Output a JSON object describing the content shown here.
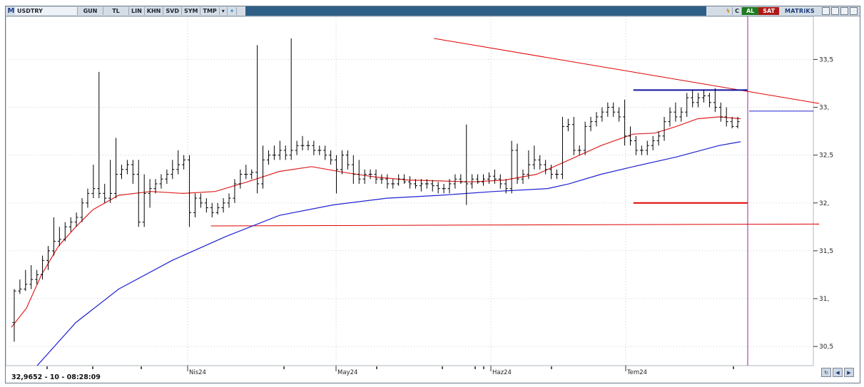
{
  "toolbar": {
    "logo": "M",
    "symbol": "USDTRY",
    "period": "GUN",
    "unit": "TL",
    "modes": [
      "LIN",
      "KHN",
      "SVD",
      "SYM",
      "TMP"
    ],
    "c_label": "C",
    "buy_label": "AL",
    "sell_label": "SAT",
    "brand": "MATRiKS"
  },
  "status": {
    "readout": "32,9652 - 10 - 08:28:09"
  },
  "colors": {
    "price": "#000000",
    "ma_short": "#e02020",
    "ma_long": "#2020d0",
    "resistance": "#1010a0",
    "support": "#e00000",
    "trend": "#e00000",
    "cursor": "#a020a0",
    "grid": "#b8c0c8"
  },
  "chart_data": {
    "type": "bar",
    "symbol": "USDTRY",
    "x_tick_labels": [
      "Nis24",
      "May24",
      "Haz24",
      "Tem24"
    ],
    "y_tick_labels": [
      "30,5",
      "31,",
      "31,5",
      "32,",
      "32,5",
      "33,",
      "33,5"
    ],
    "y_ticks": [
      30.5,
      31.0,
      31.5,
      32.0,
      32.5,
      33.0,
      33.5
    ],
    "ylim": [
      30.3,
      33.95
    ],
    "grid": true,
    "bars": [
      [
        30.75,
        31.1,
        30.55,
        31.08
      ],
      [
        31.08,
        31.2,
        31.05,
        31.1
      ],
      [
        31.1,
        31.3,
        31.08,
        31.15
      ],
      [
        31.15,
        31.35,
        31.1,
        31.2
      ],
      [
        31.2,
        31.3,
        31.15,
        31.25
      ],
      [
        31.25,
        31.45,
        31.2,
        31.4
      ],
      [
        31.4,
        31.55,
        31.3,
        31.5
      ],
      [
        31.5,
        31.85,
        31.45,
        31.6
      ],
      [
        31.6,
        31.75,
        31.55,
        31.62
      ],
      [
        31.62,
        31.8,
        31.6,
        31.75
      ],
      [
        31.75,
        31.85,
        31.7,
        31.8
      ],
      [
        31.8,
        31.9,
        31.75,
        31.85
      ],
      [
        31.85,
        32.05,
        31.8,
        32.0
      ],
      [
        32.0,
        32.15,
        31.95,
        32.1
      ],
      [
        32.1,
        32.4,
        32.05,
        32.15
      ],
      [
        32.15,
        33.37,
        32.05,
        32.1
      ],
      [
        32.1,
        32.2,
        32.0,
        32.05
      ],
      [
        32.05,
        32.45,
        32.0,
        32.1
      ],
      [
        32.1,
        32.68,
        32.05,
        32.3
      ],
      [
        32.3,
        32.4,
        32.25,
        32.35
      ],
      [
        32.35,
        32.45,
        32.3,
        32.4
      ],
      [
        32.4,
        32.45,
        32.2,
        32.3
      ],
      [
        32.3,
        32.45,
        31.75,
        31.8
      ],
      [
        31.8,
        32.3,
        31.75,
        32.1
      ],
      [
        32.1,
        32.25,
        31.95,
        32.15
      ],
      [
        32.15,
        32.25,
        32.1,
        32.2
      ],
      [
        32.2,
        32.3,
        32.15,
        32.25
      ],
      [
        32.25,
        32.35,
        32.2,
        32.3
      ],
      [
        32.3,
        32.45,
        32.25,
        32.35
      ],
      [
        32.35,
        32.55,
        32.3,
        32.4
      ],
      [
        32.4,
        32.5,
        32.35,
        32.45
      ],
      [
        32.45,
        32.5,
        31.75,
        31.9
      ],
      [
        31.9,
        32.1,
        31.85,
        32.05
      ],
      [
        32.05,
        32.1,
        31.95,
        32.0
      ],
      [
        32.0,
        32.05,
        31.9,
        31.95
      ],
      [
        31.95,
        32.0,
        31.85,
        31.9
      ],
      [
        31.9,
        32.0,
        31.88,
        31.95
      ],
      [
        31.95,
        32.05,
        31.9,
        32.0
      ],
      [
        32.0,
        32.1,
        31.95,
        32.05
      ],
      [
        32.05,
        32.25,
        32.0,
        32.2
      ],
      [
        32.2,
        32.35,
        32.15,
        32.3
      ],
      [
        32.3,
        32.4,
        32.25,
        32.3
      ],
      [
        32.3,
        32.35,
        32.25,
        32.32
      ],
      [
        32.32,
        33.65,
        32.1,
        32.2
      ],
      [
        32.2,
        32.6,
        32.15,
        32.45
      ],
      [
        32.45,
        32.55,
        32.4,
        32.5
      ],
      [
        32.5,
        32.6,
        32.45,
        32.5
      ],
      [
        32.5,
        32.65,
        32.45,
        32.55
      ],
      [
        32.55,
        32.6,
        32.45,
        32.5
      ],
      [
        32.5,
        33.72,
        32.45,
        32.55
      ],
      [
        32.55,
        32.65,
        32.5,
        32.6
      ],
      [
        32.6,
        32.7,
        32.55,
        32.6
      ],
      [
        32.6,
        32.65,
        32.55,
        32.6
      ],
      [
        32.6,
        32.65,
        32.5,
        32.55
      ],
      [
        32.55,
        32.6,
        32.5,
        32.55
      ],
      [
        32.55,
        32.6,
        32.45,
        32.5
      ],
      [
        32.5,
        32.55,
        32.4,
        32.45
      ],
      [
        32.45,
        32.5,
        32.1,
        32.35
      ],
      [
        32.35,
        32.55,
        32.3,
        32.5
      ],
      [
        32.5,
        32.55,
        32.35,
        32.4
      ],
      [
        32.4,
        32.5,
        32.2,
        32.3
      ],
      [
        32.3,
        32.45,
        32.2,
        32.25
      ],
      [
        32.25,
        32.35,
        32.2,
        32.3
      ],
      [
        32.3,
        32.35,
        32.25,
        32.3
      ],
      [
        32.3,
        32.35,
        32.2,
        32.25
      ],
      [
        32.25,
        32.3,
        32.2,
        32.25
      ],
      [
        32.25,
        32.3,
        32.15,
        32.2
      ],
      [
        32.2,
        32.25,
        32.15,
        32.2
      ],
      [
        32.2,
        32.3,
        32.18,
        32.25
      ],
      [
        32.25,
        32.3,
        32.2,
        32.22
      ],
      [
        32.22,
        32.28,
        32.15,
        32.2
      ],
      [
        32.2,
        32.25,
        32.15,
        32.18
      ],
      [
        32.18,
        32.25,
        32.12,
        32.2
      ],
      [
        32.2,
        32.25,
        32.15,
        32.2
      ],
      [
        32.2,
        32.24,
        32.12,
        32.18
      ],
      [
        32.18,
        32.22,
        32.1,
        32.15
      ],
      [
        32.15,
        32.2,
        32.1,
        32.15
      ],
      [
        32.15,
        32.25,
        32.1,
        32.2
      ],
      [
        32.2,
        32.3,
        32.15,
        32.25
      ],
      [
        32.25,
        32.3,
        32.2,
        32.22
      ],
      [
        32.22,
        32.82,
        31.98,
        32.2
      ],
      [
        32.2,
        32.3,
        32.15,
        32.25
      ],
      [
        32.25,
        32.3,
        32.2,
        32.22
      ],
      [
        32.22,
        32.3,
        32.18,
        32.25
      ],
      [
        32.25,
        32.32,
        32.2,
        32.28
      ],
      [
        32.28,
        32.35,
        32.2,
        32.25
      ],
      [
        32.25,
        32.3,
        32.15,
        32.2
      ],
      [
        32.2,
        32.25,
        32.1,
        32.15
      ],
      [
        32.15,
        32.65,
        32.1,
        32.55
      ],
      [
        32.55,
        32.62,
        32.2,
        32.25
      ],
      [
        32.25,
        32.35,
        32.2,
        32.3
      ],
      [
        32.3,
        32.55,
        32.25,
        32.4
      ],
      [
        32.4,
        32.6,
        32.35,
        32.45
      ],
      [
        32.45,
        32.5,
        32.35,
        32.4
      ],
      [
        32.4,
        32.45,
        32.3,
        32.35
      ],
      [
        32.35,
        32.4,
        32.25,
        32.3
      ],
      [
        32.3,
        32.35,
        32.25,
        32.3
      ],
      [
        32.3,
        32.9,
        32.25,
        32.8
      ],
      [
        32.8,
        32.88,
        32.75,
        32.82
      ],
      [
        32.82,
        32.9,
        32.5,
        32.55
      ],
      [
        32.55,
        32.6,
        32.5,
        32.55
      ],
      [
        32.55,
        32.85,
        32.5,
        32.8
      ],
      [
        32.8,
        32.9,
        32.75,
        32.85
      ],
      [
        32.85,
        32.95,
        32.8,
        32.9
      ],
      [
        32.9,
        33.0,
        32.85,
        32.95
      ],
      [
        32.95,
        33.05,
        32.9,
        33.0
      ],
      [
        33.0,
        33.05,
        32.9,
        32.95
      ],
      [
        32.95,
        33.0,
        32.85,
        32.9
      ],
      [
        32.9,
        33.08,
        32.6,
        32.7
      ],
      [
        32.7,
        32.8,
        32.6,
        32.65
      ],
      [
        32.65,
        32.7,
        32.5,
        32.55
      ],
      [
        32.55,
        32.6,
        32.5,
        32.55
      ],
      [
        32.55,
        32.65,
        32.5,
        32.6
      ],
      [
        32.6,
        32.7,
        32.55,
        32.65
      ],
      [
        32.65,
        32.75,
        32.6,
        32.7
      ],
      [
        32.7,
        32.9,
        32.65,
        32.85
      ],
      [
        32.85,
        33.0,
        32.8,
        32.95
      ],
      [
        32.95,
        33.05,
        32.85,
        32.9
      ],
      [
        32.9,
        33.0,
        32.85,
        32.95
      ],
      [
        32.95,
        33.15,
        32.9,
        33.1
      ],
      [
        33.1,
        33.18,
        33.0,
        33.05
      ],
      [
        33.05,
        33.15,
        33.0,
        33.1
      ],
      [
        33.1,
        33.18,
        33.05,
        33.12
      ],
      [
        33.12,
        33.15,
        33.0,
        33.05
      ],
      [
        33.05,
        33.2,
        32.95,
        33.0
      ],
      [
        33.0,
        33.05,
        32.85,
        32.9
      ],
      [
        32.9,
        33.0,
        32.8,
        32.85
      ],
      [
        32.85,
        32.9,
        32.78,
        32.8
      ],
      [
        32.8,
        32.9,
        32.78,
        32.85
      ]
    ],
    "ma_short": [
      [
        0,
        30.7
      ],
      [
        14,
        30.9
      ],
      [
        28,
        31.25
      ],
      [
        44,
        31.55
      ],
      [
        60,
        31.75
      ],
      [
        76,
        31.93
      ],
      [
        100,
        32.08
      ],
      [
        130,
        32.12
      ],
      [
        160,
        32.1
      ],
      [
        190,
        32.12
      ],
      [
        220,
        32.22
      ],
      [
        250,
        32.33
      ],
      [
        280,
        32.38
      ],
      [
        310,
        32.32
      ],
      [
        340,
        32.27
      ],
      [
        370,
        32.24
      ],
      [
        400,
        32.23
      ],
      [
        430,
        32.22
      ],
      [
        460,
        32.24
      ],
      [
        490,
        32.3
      ],
      [
        520,
        32.45
      ],
      [
        550,
        32.6
      ],
      [
        580,
        32.72
      ],
      [
        600,
        32.73
      ],
      [
        620,
        32.8
      ],
      [
        640,
        32.88
      ],
      [
        660,
        32.9
      ],
      [
        680,
        32.88
      ]
    ],
    "ma_long": [
      [
        24,
        30.3
      ],
      [
        60,
        30.75
      ],
      [
        100,
        31.1
      ],
      [
        150,
        31.4
      ],
      [
        200,
        31.65
      ],
      [
        250,
        31.87
      ],
      [
        300,
        31.98
      ],
      [
        350,
        32.05
      ],
      [
        400,
        32.08
      ],
      [
        450,
        32.12
      ],
      [
        500,
        32.15
      ],
      [
        520,
        32.2
      ],
      [
        550,
        32.3
      ],
      [
        580,
        32.38
      ],
      [
        620,
        32.48
      ],
      [
        660,
        32.6
      ],
      [
        680,
        32.64
      ]
    ],
    "resistance_line": {
      "value": 33.18
    },
    "support_line": {
      "value": 32.0
    },
    "trend_top": {
      "from": 33.72,
      "to": 33.04
    },
    "trend_bottom": {
      "from": 31.76,
      "to": 31.78
    },
    "last_marker": 32.96
  }
}
